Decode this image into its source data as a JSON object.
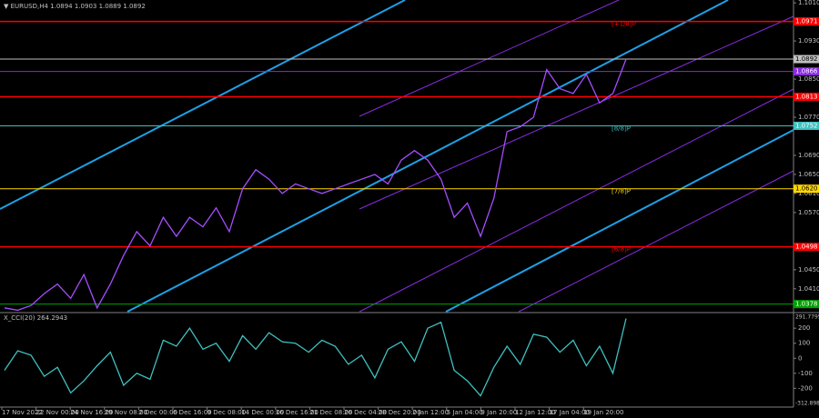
{
  "chart_data": [
    {
      "type": "price",
      "title": "▼ EURUSD,H4  1.0894 1.0903 1.0889 1.0892",
      "color": "#a64dff",
      "values": [
        1.037,
        1.0365,
        1.0375,
        1.04,
        1.042,
        1.039,
        1.044,
        1.037,
        1.042,
        1.048,
        1.053,
        1.05,
        1.056,
        1.052,
        1.056,
        1.054,
        1.058,
        1.053,
        1.062,
        1.066,
        1.064,
        1.061,
        1.063,
        1.062,
        1.061,
        1.062,
        1.063,
        1.064,
        1.065,
        1.063,
        1.068,
        1.07,
        1.068,
        1.064,
        1.056,
        1.059,
        1.052,
        1.06,
        1.074,
        1.075,
        1.077,
        1.087,
        1.083,
        1.082,
        1.086,
        1.08,
        1.082,
        1.0892
      ],
      "ylim": [
        1.0362,
        1.1016
      ],
      "yticks": [
        {
          "value": 1.101,
          "label": "1.1010"
        },
        {
          "value": 1.093,
          "label": "1.0930"
        },
        {
          "value": 1.085,
          "label": "1.0850"
        },
        {
          "value": 1.077,
          "label": "1.0770"
        },
        {
          "value": 1.069,
          "label": "1.0690"
        },
        {
          "value": 1.065,
          "label": "1.0650"
        },
        {
          "value": 1.061,
          "label": "1.0610"
        },
        {
          "value": 1.057,
          "label": "1.0570"
        },
        {
          "value": 1.045,
          "label": "1.0450"
        },
        {
          "value": 1.041,
          "label": "1.0410"
        }
      ],
      "levels": [
        {
          "value": 1.0971,
          "label": "1.0971",
          "color": "#ff0000",
          "tag": "[+1/8]P"
        },
        {
          "value": 1.0892,
          "label": "1.0892",
          "color": "#c0c0c0"
        },
        {
          "value": 1.0866,
          "label": "1.0866",
          "color": "#8a2be2"
        },
        {
          "value": 1.0813,
          "label": "1.0813",
          "color": "#ff0000"
        },
        {
          "value": 1.0752,
          "label": "1.0752",
          "color": "#40c0c0",
          "tag": "[8/8]P"
        },
        {
          "value": 1.062,
          "label": "1.0620",
          "color": "#ffd700",
          "tag": "[7/8]P"
        },
        {
          "value": 1.0498,
          "label": "1.0498",
          "color": "#ff0000",
          "tag": "[6/8]P"
        },
        {
          "value": 1.0378,
          "label": "1.0378",
          "color": "#00a000"
        }
      ],
      "x_labels": [
        "17 Nov 2022",
        "22 Nov 00:00",
        "24 Nov 16:00",
        "29 Nov 08:00",
        "2 Dec 00:00",
        "6 Dec 16:00",
        "9 Dec 08:00",
        "14 Dec 00:00",
        "16 Dec 16:00",
        "21 Dec 08:00",
        "26 Dec 04:00",
        "28 Dec 20:00",
        "2 Jan 12:00",
        "5 Jan 04:00",
        "9 Jan 20:00",
        "12 Jan 12:00",
        "17 Jan 04:00",
        "19 Jan 20:00"
      ]
    },
    {
      "type": "oscillator",
      "title": "X_CCI(20) 264.2943",
      "color": "#40c0c0",
      "values": [
        -80,
        50,
        20,
        -120,
        -60,
        -230,
        -150,
        -50,
        40,
        -180,
        -100,
        -140,
        120,
        80,
        200,
        60,
        100,
        -20,
        150,
        60,
        170,
        110,
        100,
        40,
        120,
        80,
        -40,
        20,
        -130,
        60,
        110,
        -20,
        200,
        240,
        -80,
        -150,
        -250,
        -60,
        80,
        -40,
        160,
        140,
        40,
        120,
        -50,
        80,
        -100,
        264.2943
      ],
      "ylim": [
        -312.898,
        291.7795
      ],
      "yticks": [
        200,
        100,
        0,
        -100,
        -200
      ]
    }
  ]
}
